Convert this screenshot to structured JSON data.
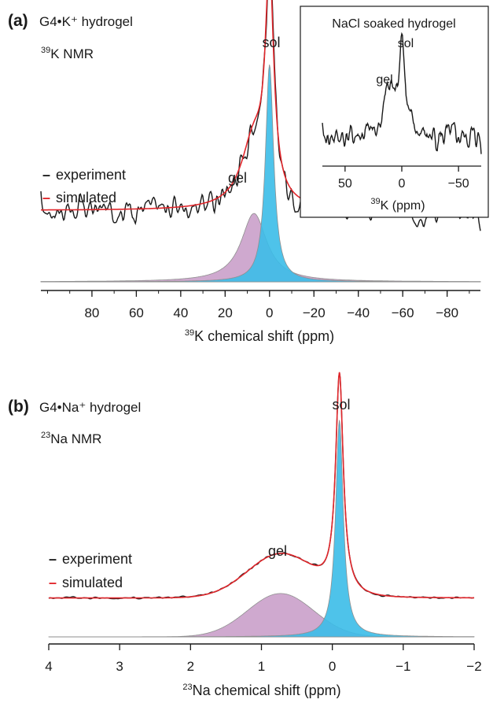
{
  "colors": {
    "experiment": "#1a1a1a",
    "simulated": "#e1262b",
    "sol_fill": "#3bbde8",
    "gel_fill": "#c79ac7",
    "baseline": "#8c8c8c"
  },
  "chart_data": [
    {
      "type": "line",
      "panel_letter": "(a)",
      "title": "G4•K⁺ hydrogel",
      "nucleus_sup": "39",
      "nucleus_text": "K NMR",
      "peak_labels": {
        "sol": "sol",
        "gel": "gel"
      },
      "legend": [
        {
          "key": "experiment",
          "dash": "–",
          "label": "experiment"
        },
        {
          "key": "simulated",
          "dash": "–",
          "label": "simulated"
        }
      ],
      "x_axis": {
        "reversed": true,
        "range": [
          103,
          -95
        ],
        "ticks": [
          80,
          60,
          40,
          20,
          0,
          -20,
          -40,
          -60,
          -80
        ],
        "tick_labels": [
          "80",
          "60",
          "40",
          "20",
          "0",
          "−20",
          "−40",
          "−60",
          "−80"
        ],
        "title_sup": "39",
        "title_text": "K chemical shift (ppm)"
      },
      "components": [
        {
          "name": "sol",
          "center": 0,
          "fwhm": 4.5,
          "height": 0.73,
          "shape": "lorentzian"
        },
        {
          "name": "gel",
          "center": 7,
          "fwhm": 14,
          "height": 0.23,
          "shape": "lorentzian"
        }
      ],
      "simulated_offset": 0.24,
      "experiment_noise": 0.07,
      "inset": {
        "title": "NaCl soaked hydrogel",
        "peak_labels": {
          "sol": "sol",
          "gel": "gel"
        },
        "x_axis": {
          "reversed": true,
          "range": [
            70,
            -70
          ],
          "ticks": [
            50,
            0,
            -50
          ],
          "tick_labels": [
            "50",
            "0",
            "−50"
          ],
          "title_sup": "39",
          "title_text": "K (ppm)"
        },
        "components": [
          {
            "name": "sol",
            "center": 0,
            "fwhm": 6,
            "height": 0.7
          },
          {
            "name": "gel",
            "center": 11,
            "fwhm": 10,
            "height": 0.35
          }
        ]
      }
    },
    {
      "type": "line",
      "panel_letter": "(b)",
      "title": "G4•Na⁺ hydrogel",
      "nucleus_sup": "23",
      "nucleus_text": "Na NMR",
      "peak_labels": {
        "sol": "sol",
        "gel": "gel"
      },
      "legend": [
        {
          "key": "experiment",
          "dash": "–",
          "label": "experiment"
        },
        {
          "key": "simulated",
          "dash": "–",
          "label": "simulated"
        }
      ],
      "x_axis": {
        "reversed": true,
        "range": [
          4,
          -2
        ],
        "ticks": [
          4,
          3,
          2,
          1,
          0,
          -1,
          -2
        ],
        "tick_labels": [
          "4",
          "3",
          "2",
          "1",
          "0",
          "−1",
          "−2"
        ],
        "title_sup": "23",
        "title_text": "Na chemical shift (ppm)"
      },
      "components": [
        {
          "name": "sol",
          "center": -0.1,
          "fwhm": 0.13,
          "height": 0.95,
          "shape": "lorentzian"
        },
        {
          "name": "gel",
          "center": 0.73,
          "fwhm": 1.1,
          "height": 0.19,
          "shape": "gaussian"
        }
      ],
      "simulated_offset": 0.17
    }
  ]
}
